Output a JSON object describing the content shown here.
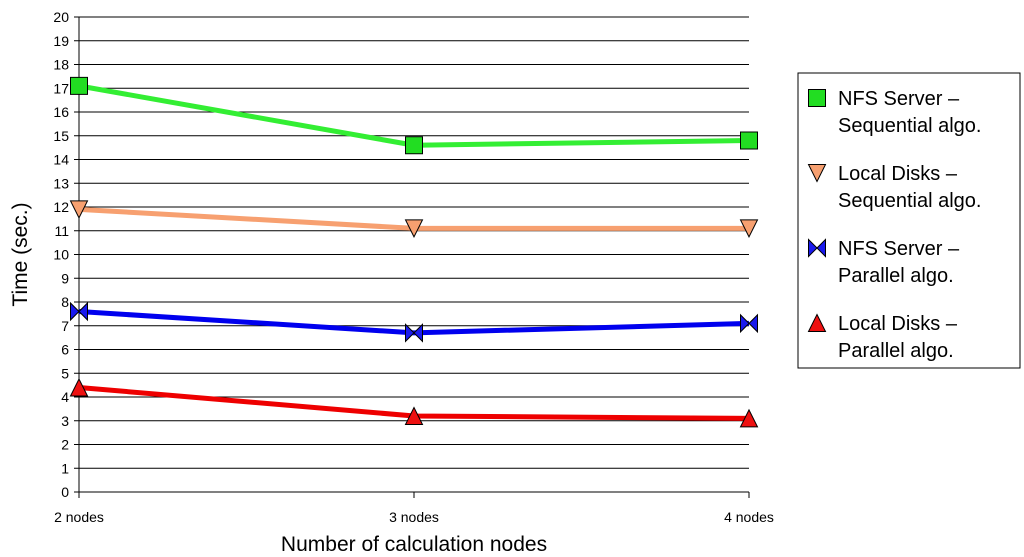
{
  "chart_data": {
    "type": "line",
    "xlabel": "Number of calculation nodes",
    "ylabel": "Time (sec.)",
    "categories": [
      "2 nodes",
      "3 nodes",
      "4 nodes"
    ],
    "ylim": [
      0,
      20
    ],
    "ytick_step": 1,
    "grid": "horizontal",
    "legend_position": "right",
    "series": [
      {
        "name_lines": [
          "NFS Server –",
          "Sequential algo."
        ],
        "values": [
          17.1,
          14.6,
          14.8
        ],
        "color": "#33ee33",
        "marker": "square",
        "marker_color": "#22dd22"
      },
      {
        "name_lines": [
          "Local Disks –",
          "Sequential algo."
        ],
        "values": [
          11.9,
          11.1,
          11.1
        ],
        "color": "#f7a070",
        "marker": "triangle-down",
        "marker_color": "#f7a070"
      },
      {
        "name_lines": [
          "NFS Server –",
          "Parallel algo."
        ],
        "values": [
          7.6,
          6.7,
          7.1
        ],
        "color": "#0000ee",
        "marker": "bowtie",
        "marker_color": "#1a1aee"
      },
      {
        "name_lines": [
          "Local Disks –",
          "Parallel algo."
        ],
        "values": [
          4.4,
          3.2,
          3.1
        ],
        "color": "#ee0000",
        "marker": "triangle-up",
        "marker_color": "#ee1111"
      }
    ]
  }
}
